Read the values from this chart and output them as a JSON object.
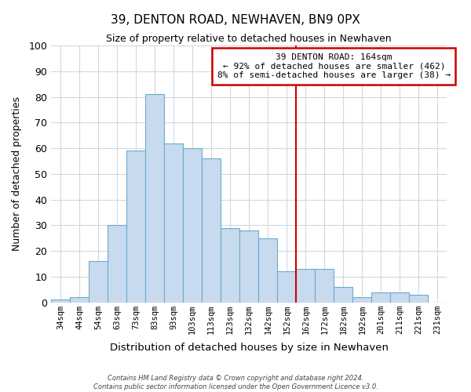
{
  "title": "39, DENTON ROAD, NEWHAVEN, BN9 0PX",
  "subtitle": "Size of property relative to detached houses in Newhaven",
  "xlabel": "Distribution of detached houses by size in Newhaven",
  "ylabel": "Number of detached properties",
  "bar_labels": [
    "34sqm",
    "44sqm",
    "54sqm",
    "63sqm",
    "73sqm",
    "83sqm",
    "93sqm",
    "103sqm",
    "113sqm",
    "123sqm",
    "132sqm",
    "142sqm",
    "152sqm",
    "162sqm",
    "172sqm",
    "182sqm",
    "192sqm",
    "201sqm",
    "211sqm",
    "221sqm",
    "231sqm"
  ],
  "bar_values": [
    1,
    2,
    16,
    30,
    59,
    81,
    62,
    60,
    56,
    29,
    28,
    25,
    12,
    13,
    13,
    6,
    2,
    4,
    4,
    3,
    0
  ],
  "bar_color": "#c8daee",
  "bar_edge_color": "#6aabcf",
  "ylim": [
    0,
    100
  ],
  "grid_color": "#d0d8e0",
  "vline_x": 13,
  "vline_color": "#cc0000",
  "annotation_title": "39 DENTON ROAD: 164sqm",
  "annotation_line1": "← 92% of detached houses are smaller (462)",
  "annotation_line2": "8% of semi-detached houses are larger (38) →",
  "annotation_box_color": "#ffffff",
  "annotation_box_edge": "#cc0000",
  "footer_line1": "Contains HM Land Registry data © Crown copyright and database right 2024.",
  "footer_line2": "Contains public sector information licensed under the Open Government Licence v3.0."
}
